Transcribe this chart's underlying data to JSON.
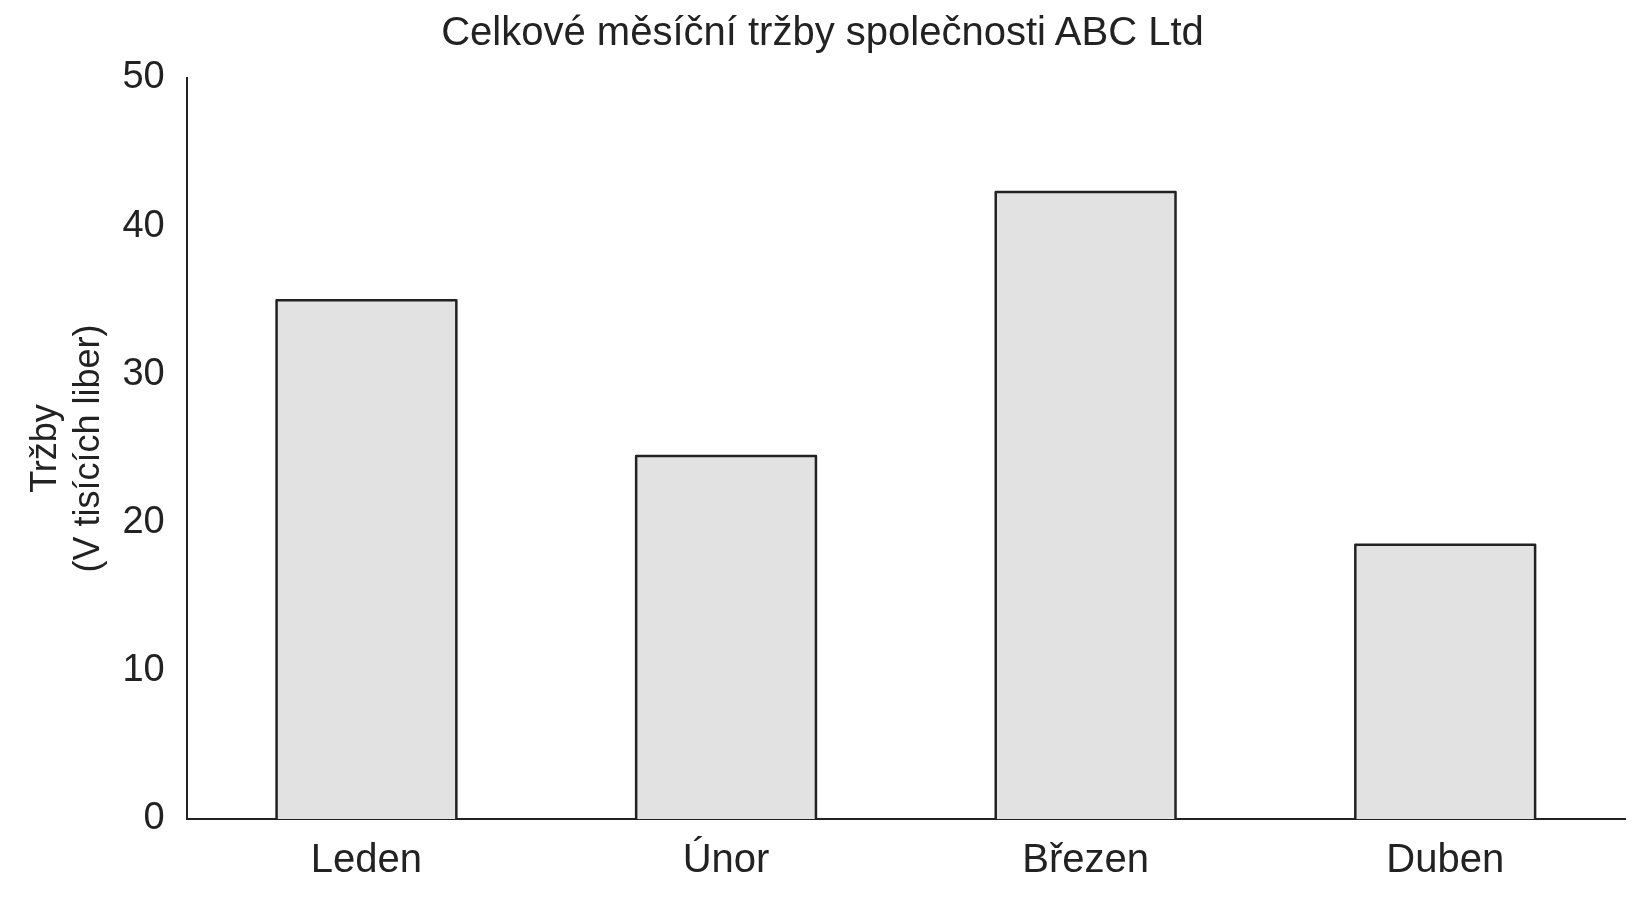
{
  "chart_data": {
    "type": "bar",
    "title": "Celkové měsíční tržby společnosti ABC Ltd",
    "ylabel": "Tržby\n(V tisících liber)",
    "categories": [
      "Leden",
      "Únor",
      "Březen",
      "Duben"
    ],
    "values": [
      35,
      24.5,
      42.3,
      18.5
    ],
    "color": "#e2e2e2",
    "ylim": [
      0,
      50
    ],
    "yticks": [
      0,
      10,
      20,
      30,
      40,
      50
    ],
    "grid": false,
    "legend": false
  }
}
